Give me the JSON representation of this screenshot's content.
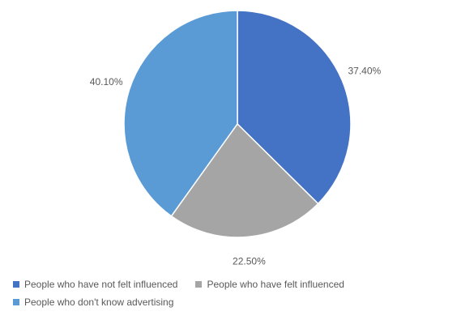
{
  "chart_data": {
    "type": "pie",
    "title": "",
    "slices": [
      {
        "label": "People who have not felt influenced",
        "value": 37.4,
        "display": "37.40%",
        "color": "#4472C4"
      },
      {
        "label": "People who have felt influenced",
        "value": 22.5,
        "display": "22.50%",
        "color": "#A5A5A5"
      },
      {
        "label": "People who don't know advertising",
        "value": 40.1,
        "display": "40.10%",
        "color": "#5B9BD5"
      }
    ],
    "start_angle_deg": 0,
    "direction": "clockwise",
    "legend_position": "bottom"
  }
}
